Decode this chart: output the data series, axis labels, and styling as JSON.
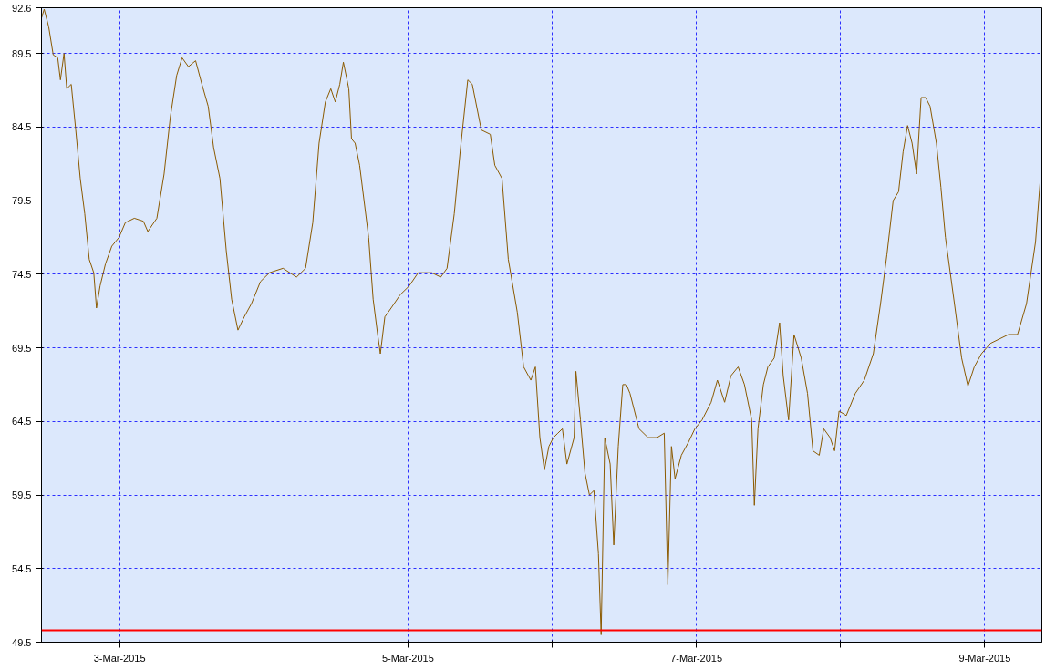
{
  "chart_data": {
    "type": "line",
    "x": [
      "2015-03-02T11:00",
      "2015-03-02T11:27",
      "2015-03-02T12:12",
      "2015-03-02T12:57",
      "2015-03-02T13:42",
      "2015-03-02T14:09",
      "2015-03-02T14:45",
      "2015-03-02T15:12",
      "2015-03-02T15:57",
      "2015-03-02T16:42",
      "2015-03-02T17:27",
      "2015-03-02T18:12",
      "2015-03-02T18:57",
      "2015-03-02T19:42",
      "2015-03-02T20:09",
      "2015-03-02T20:45",
      "2015-03-02T21:39",
      "2015-03-02T22:42",
      "2015-03-02T23:54",
      "2015-03-03T00:57",
      "2015-03-03T02:27",
      "2015-03-03T03:57",
      "2015-03-03T04:42",
      "2015-03-03T06:12",
      "2015-03-03T07:24",
      "2015-03-03T08:27",
      "2015-03-03T09:30",
      "2015-03-03T10:24",
      "2015-03-03T11:27",
      "2015-03-03T12:39",
      "2015-03-03T13:42",
      "2015-03-03T14:45",
      "2015-03-03T15:39",
      "2015-03-03T16:42",
      "2015-03-03T17:45",
      "2015-03-03T18:39",
      "2015-03-03T19:42",
      "2015-03-03T20:45",
      "2015-03-03T21:57",
      "2015-03-03T23:27",
      "2015-03-04T00:57",
      "2015-03-04T03:12",
      "2015-03-04T05:27",
      "2015-03-04T06:57",
      "2015-03-04T08:09",
      "2015-03-04T09:12",
      "2015-03-04T10:15",
      "2015-03-04T11:09",
      "2015-03-04T11:54",
      "2015-03-04T12:39",
      "2015-03-04T13:15",
      "2015-03-04T14:09",
      "2015-03-04T14:36",
      "2015-03-04T15:12",
      "2015-03-04T15:57",
      "2015-03-04T17:27",
      "2015-03-04T18:12",
      "2015-03-04T18:57",
      "2015-03-04T19:24",
      "2015-03-04T20:09",
      "2015-03-04T21:12",
      "2015-03-04T22:42",
      "2015-03-05T00:12",
      "2015-03-05T01:42",
      "2015-03-05T03:57",
      "2015-03-05T05:27",
      "2015-03-05T06:30",
      "2015-03-05T07:42",
      "2015-03-05T08:45",
      "2015-03-05T09:57",
      "2015-03-05T10:42",
      "2015-03-05T12:12",
      "2015-03-05T13:42",
      "2015-03-05T14:27",
      "2015-03-05T15:39",
      "2015-03-05T16:42",
      "2015-03-05T18:12",
      "2015-03-05T19:15",
      "2015-03-05T20:27",
      "2015-03-05T21:12",
      "2015-03-05T21:57",
      "2015-03-05T22:42",
      "2015-03-05T23:27",
      "2015-03-06T00:12",
      "2015-03-06T00:57",
      "2015-03-06T01:42",
      "2015-03-06T02:27",
      "2015-03-06T03:39",
      "2015-03-06T03:57",
      "2015-03-06T04:42",
      "2015-03-06T05:27",
      "2015-03-06T06:12",
      "2015-03-06T06:57",
      "2015-03-06T07:42",
      "2015-03-06T08:09",
      "2015-03-06T08:45",
      "2015-03-06T09:39",
      "2015-03-06T10:15",
      "2015-03-06T11:00",
      "2015-03-06T11:45",
      "2015-03-06T12:21",
      "2015-03-06T12:57",
      "2015-03-06T13:42",
      "2015-03-06T14:27",
      "2015-03-06T15:57",
      "2015-03-06T17:27",
      "2015-03-06T18:39",
      "2015-03-06T19:15",
      "2015-03-06T19:51",
      "2015-03-06T20:27",
      "2015-03-06T21:30",
      "2015-03-06T22:42",
      "2015-03-06T23:45",
      "2015-03-07T00:57",
      "2015-03-07T02:27",
      "2015-03-07T03:30",
      "2015-03-07T04:42",
      "2015-03-07T05:45",
      "2015-03-07T06:57",
      "2015-03-07T08:00",
      "2015-03-07T09:12",
      "2015-03-07T09:39",
      "2015-03-07T10:15",
      "2015-03-07T11:09",
      "2015-03-07T11:54",
      "2015-03-07T12:57",
      "2015-03-07T13:51",
      "2015-03-07T14:27",
      "2015-03-07T15:21",
      "2015-03-07T16:15",
      "2015-03-07T17:27",
      "2015-03-07T18:30",
      "2015-03-07T19:24",
      "2015-03-07T20:27",
      "2015-03-07T21:12",
      "2015-03-07T22:15",
      "2015-03-07T23:00",
      "2015-03-07T23:45",
      "2015-03-08T00:57",
      "2015-03-08T02:27",
      "2015-03-08T03:57",
      "2015-03-08T05:27",
      "2015-03-08T06:39",
      "2015-03-08T07:42",
      "2015-03-08T08:45",
      "2015-03-08T09:39",
      "2015-03-08T10:24",
      "2015-03-08T11:09",
      "2015-03-08T11:54",
      "2015-03-08T12:39",
      "2015-03-08T13:24",
      "2015-03-08T14:09",
      "2015-03-08T14:54",
      "2015-03-08T15:57",
      "2015-03-08T16:42",
      "2015-03-08T17:27",
      "2015-03-08T18:57",
      "2015-03-08T20:09",
      "2015-03-08T21:12",
      "2015-03-08T22:15",
      "2015-03-08T23:27",
      "2015-03-09T00:57",
      "2015-03-09T02:27",
      "2015-03-09T03:57",
      "2015-03-09T05:27",
      "2015-03-09T06:57",
      "2015-03-09T08:27",
      "2015-03-09T09:12"
    ],
    "series": [
      {
        "color": "#8b5a00",
        "values": [
          91.9,
          92.5,
          91.3,
          89.4,
          89.2,
          87.7,
          89.5,
          87.1,
          87.4,
          84.3,
          81.0,
          78.6,
          75.5,
          74.6,
          72.2,
          73.7,
          75.2,
          76.4,
          77.0,
          78.0,
          78.3,
          78.1,
          77.4,
          78.3,
          81.3,
          85.2,
          88.0,
          89.2,
          88.6,
          89.0,
          87.4,
          85.9,
          83.1,
          81.0,
          76.1,
          72.8,
          70.7,
          71.6,
          72.5,
          74.0,
          74.6,
          74.9,
          74.3,
          74.9,
          78.0,
          83.4,
          86.2,
          87.1,
          86.2,
          87.4,
          88.9,
          87.1,
          83.7,
          83.4,
          81.9,
          77.0,
          72.8,
          70.4,
          69.1,
          71.6,
          72.2,
          73.1,
          73.7,
          74.6,
          74.6,
          74.3,
          74.9,
          78.6,
          83.1,
          87.7,
          87.4,
          84.3,
          84.0,
          81.9,
          81.0,
          75.5,
          71.9,
          68.2,
          67.3,
          68.2,
          63.4,
          61.2,
          62.8,
          63.4,
          63.7,
          64.0,
          61.6,
          63.4,
          67.9,
          64.6,
          61.0,
          59.5,
          59.8,
          55.5,
          50.0,
          63.4,
          61.6,
          56.1,
          62.8,
          67.0,
          67.0,
          66.4,
          65.2,
          64.0,
          63.4,
          63.4,
          63.7,
          53.4,
          62.8,
          60.6,
          62.2,
          63.1,
          64.0,
          64.6,
          65.8,
          67.3,
          65.8,
          67.6,
          68.2,
          67.0,
          64.6,
          58.8,
          64.0,
          67.0,
          68.2,
          68.8,
          71.2,
          67.6,
          64.6,
          70.4,
          68.8,
          66.4,
          62.5,
          62.2,
          64.0,
          63.4,
          62.5,
          65.2,
          64.9,
          66.4,
          67.3,
          69.1,
          72.5,
          75.8,
          79.5,
          80.1,
          82.8,
          84.6,
          83.4,
          81.3,
          86.5,
          86.5,
          85.9,
          83.4,
          80.4,
          77.0,
          72.5,
          68.8,
          66.9,
          68.2,
          69.1,
          69.8,
          70.1,
          70.4,
          70.4,
          72.5,
          76.7,
          80.7
        ]
      }
    ],
    "xlim": [
      "2015-03-02T11:00",
      "2015-03-09T09:30"
    ],
    "xticks": [
      {
        "value": "2015-03-03",
        "label": "3-Mar-2015"
      },
      {
        "value": "2015-03-04",
        "label": null
      },
      {
        "value": "2015-03-05",
        "label": "5-Mar-2015"
      },
      {
        "value": "2015-03-06",
        "label": null
      },
      {
        "value": "2015-03-07",
        "label": "7-Mar-2015"
      },
      {
        "value": "2015-03-08",
        "label": null
      },
      {
        "value": "2015-03-09",
        "label": "9-Mar-2015"
      }
    ],
    "ylim": [
      49.5,
      92.6
    ],
    "yticks": [
      49.5,
      54.5,
      59.5,
      64.5,
      69.5,
      74.5,
      79.5,
      84.5,
      89.5,
      92.6
    ],
    "ref_lines": [
      {
        "axis": "y",
        "value": 50.3,
        "color": "#ff0000"
      }
    ],
    "grid": true
  }
}
